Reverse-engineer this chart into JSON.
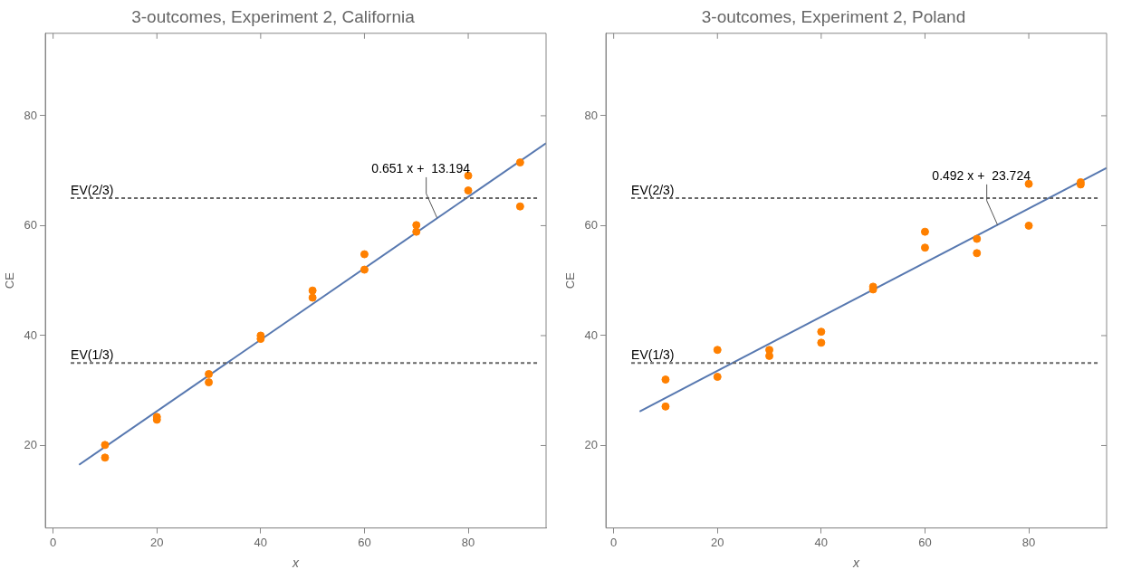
{
  "chart_data": [
    {
      "type": "scatter",
      "title": "3-outcomes, Experiment 2, California",
      "xlabel": "x",
      "ylabel": "CE",
      "xlim": [
        -1.5,
        95
      ],
      "ylim": [
        5,
        95
      ],
      "xticks": [
        0,
        20,
        40,
        60,
        80
      ],
      "yticks": [
        20,
        40,
        60,
        80
      ],
      "grid": false,
      "legend": false,
      "series": [
        {
          "color": "#ff8000",
          "marker": "circle",
          "x": [
            10,
            10,
            20,
            20,
            30,
            30,
            40,
            40,
            50,
            50,
            60,
            60,
            70,
            70,
            80,
            80,
            90,
            90
          ],
          "values": [
            20.1,
            17.8,
            25.2,
            24.7,
            33.0,
            31.5,
            40.0,
            39.4,
            48.2,
            46.9,
            54.8,
            52.0,
            60.1,
            58.9,
            69.1,
            66.4,
            71.5,
            63.5
          ]
        },
        {
          "type": "line",
          "color": "#5778b0",
          "marker": "none",
          "x": [
            5,
            95
          ],
          "values": [
            16.5,
            75.0
          ]
        }
      ],
      "ref_lines": [
        {
          "axis": "y",
          "value": 35,
          "label": "EV(1/3)",
          "color": "#666666",
          "line_style": "dashed"
        },
        {
          "axis": "y",
          "value": 65,
          "label": "EV(2/3)",
          "color": "#666666",
          "line_style": "dashed"
        }
      ],
      "annotations": [
        {
          "text": "0.651 x +  13.194",
          "x": 74,
          "y": 61.4
        }
      ]
    },
    {
      "type": "scatter",
      "title": "3-outcomes, Experiment 2, Poland",
      "xlabel": "x",
      "ylabel": "CE",
      "xlim": [
        -1.5,
        95
      ],
      "ylim": [
        5,
        95
      ],
      "xticks": [
        0,
        20,
        40,
        60,
        80
      ],
      "yticks": [
        20,
        40,
        60,
        80
      ],
      "grid": false,
      "legend": false,
      "series": [
        {
          "color": "#ff8000",
          "marker": "circle",
          "x": [
            10,
            10,
            20,
            20,
            30,
            30,
            40,
            40,
            50,
            50,
            60,
            60,
            70,
            70,
            80,
            80,
            90,
            90
          ],
          "values": [
            32.0,
            27.1,
            37.4,
            32.5,
            37.4,
            36.3,
            40.7,
            38.7,
            48.9,
            48.4,
            58.9,
            56.0,
            57.6,
            55.0,
            67.6,
            60.0,
            67.9,
            67.5
          ]
        },
        {
          "type": "line",
          "color": "#5778b0",
          "marker": "none",
          "x": [
            5,
            95
          ],
          "values": [
            26.2,
            70.5
          ]
        }
      ],
      "ref_lines": [
        {
          "axis": "y",
          "value": 35,
          "label": "EV(1/3)",
          "color": "#666666",
          "line_style": "dashed"
        },
        {
          "axis": "y",
          "value": 65,
          "label": "EV(2/3)",
          "color": "#666666",
          "line_style": "dashed"
        }
      ],
      "annotations": [
        {
          "text": "0.492 x +  23.724",
          "x": 74,
          "y": 60.1
        }
      ]
    }
  ]
}
